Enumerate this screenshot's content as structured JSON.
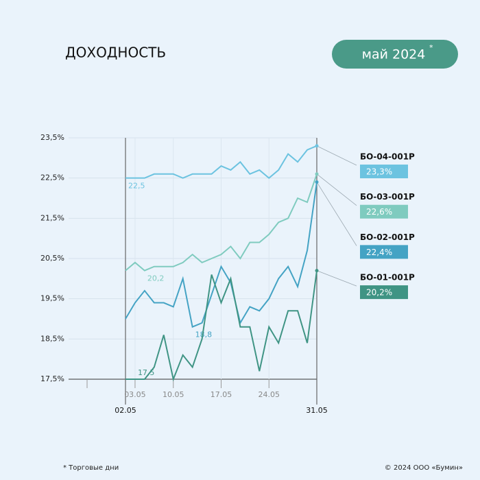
{
  "chart_data": {
    "type": "line",
    "title": "ДОХОДНОСТЬ",
    "period": "май 2024",
    "period_mark": "*",
    "footnote": "* Торговые дни",
    "copyright": "© 2024 ООО «Бумин»",
    "categories": [
      "02.05",
      "03.05",
      null,
      null,
      null,
      "10.05",
      null,
      null,
      null,
      null,
      "17.05",
      null,
      null,
      null,
      null,
      "24.05",
      null,
      null,
      null,
      null,
      "31.05"
    ],
    "ylim": [
      17.5,
      23.5
    ],
    "yticks": [
      {
        "value": 17.5,
        "label": "17,5%"
      },
      {
        "value": 18.5,
        "label": "18,5%"
      },
      {
        "value": 19.5,
        "label": "19,5%"
      },
      {
        "value": 20.5,
        "label": "20,5%"
      },
      {
        "value": 21.5,
        "label": "21,5%"
      },
      {
        "value": 22.5,
        "label": "22,5%"
      },
      {
        "value": 23.5,
        "label": "23,5%"
      }
    ],
    "grid": true,
    "series": [
      {
        "name": "БО-04-001P",
        "color": "#6cc3e0",
        "values": [
          22.5,
          22.5,
          22.5,
          22.6,
          22.6,
          22.6,
          22.5,
          22.6,
          22.6,
          22.6,
          22.8,
          22.7,
          22.9,
          22.6,
          22.7,
          22.5,
          22.7,
          23.1,
          22.9,
          23.2,
          23.3
        ],
        "value_labels": [
          "22,5",
          null,
          null,
          null,
          null,
          null,
          null,
          null,
          null,
          null,
          null,
          null,
          null,
          null,
          null,
          null,
          null,
          null,
          null,
          null,
          "23,3%"
        ]
      },
      {
        "name": "БО-03-001P",
        "color": "#7fcbbf",
        "values": [
          20.2,
          20.4,
          20.2,
          20.3,
          20.3,
          20.3,
          20.4,
          20.6,
          20.4,
          20.5,
          20.6,
          20.8,
          20.5,
          20.9,
          20.9,
          21.1,
          21.4,
          21.5,
          22.0,
          21.9,
          22.6
        ],
        "value_labels": [
          null,
          null,
          "20,2",
          null,
          null,
          null,
          null,
          null,
          null,
          null,
          null,
          null,
          null,
          null,
          null,
          null,
          null,
          null,
          null,
          null,
          "22,6%"
        ]
      },
      {
        "name": "БО-02-001P",
        "color": "#44a3c4",
        "values": [
          19.0,
          19.4,
          19.7,
          19.4,
          19.4,
          19.3,
          20.0,
          18.8,
          18.9,
          19.6,
          20.3,
          19.9,
          18.9,
          19.3,
          19.2,
          19.5,
          20.0,
          20.3,
          19.8,
          20.7,
          22.4
        ],
        "value_labels": [
          null,
          null,
          null,
          null,
          null,
          null,
          null,
          "18,8",
          null,
          null,
          null,
          null,
          null,
          null,
          null,
          null,
          null,
          null,
          null,
          null,
          "22,4%"
        ]
      },
      {
        "name": "БО-01-001P",
        "color": "#3f9484",
        "values": [
          17.5,
          17.5,
          17.5,
          17.8,
          18.6,
          17.5,
          18.1,
          17.8,
          18.5,
          20.1,
          19.4,
          20.0,
          18.8,
          18.8,
          17.7,
          18.8,
          18.4,
          19.2,
          19.2,
          18.4,
          20.2
        ],
        "value_labels": [
          null,
          "17,5",
          null,
          null,
          null,
          null,
          null,
          null,
          null,
          null,
          null,
          null,
          null,
          null,
          null,
          null,
          null,
          null,
          null,
          null,
          "20,2%"
        ]
      }
    ]
  }
}
